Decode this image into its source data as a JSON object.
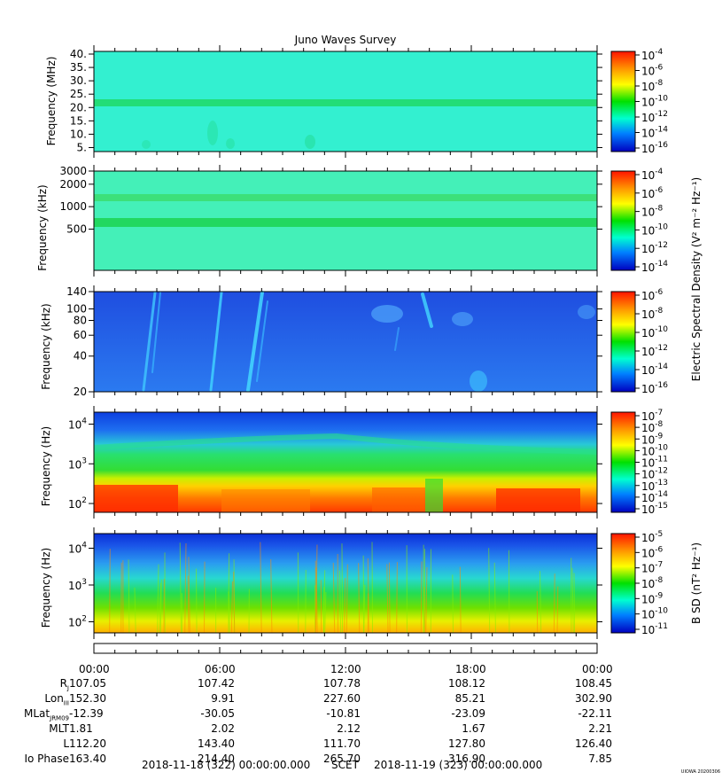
{
  "title": "Juno Waves Survey",
  "credit": "UIOWA 20200306",
  "chart_data": {
    "type": "heatmap",
    "title": "Juno Waves Survey",
    "time_axis": {
      "ticks": [
        "00:00",
        "06:00",
        "12:00",
        "18:00",
        "00:00"
      ],
      "start": "2018-11-18 (322) 00:00:00.000",
      "label": "SCET",
      "end": "2018-11-19 (323) 00:00:00.000"
    },
    "panels": [
      {
        "ylabel": "Frequency (MHz)",
        "yscale": "linear",
        "ylim": [
          3.5,
          41
        ],
        "yticks": [
          {
            "v": 40,
            "label": "40."
          },
          {
            "v": 35,
            "label": "35."
          },
          {
            "v": 30,
            "label": "30."
          },
          {
            "v": 25,
            "label": "25."
          },
          {
            "v": 20,
            "label": "20."
          },
          {
            "v": 15,
            "label": "15."
          },
          {
            "v": 10,
            "label": "10."
          },
          {
            "v": 5,
            "label": "5."
          }
        ],
        "bands": [
          {
            "v": 21.5,
            "width": 1.4,
            "color": "#22dd77"
          }
        ],
        "base_color": "#33f0d0",
        "colorbar": {
          "exp": [
            -4,
            -6,
            -8,
            -10,
            -12,
            -14,
            -16
          ]
        }
      },
      {
        "ylabel": "Frequency (kHz)",
        "yscale": "log",
        "ylim": [
          140,
          3000
        ],
        "yticks": [
          {
            "v": 3000,
            "label": "3000"
          },
          {
            "v": 2000,
            "label": "2000"
          },
          {
            "v": 1000,
            "label": "1000"
          },
          {
            "v": 500,
            "label": "500"
          }
        ],
        "bands": [
          {
            "v": 1400,
            "width": 0.04,
            "color": "#3ce07a"
          },
          {
            "v": 650,
            "width": 0.05,
            "color": "#22d860"
          }
        ],
        "base_color": "#44f0b8",
        "colorbar": {
          "exp": [
            -4,
            -6,
            -8,
            -10,
            -12,
            -14
          ]
        }
      },
      {
        "ylabel": "Frequency (kHz)",
        "yscale": "log",
        "ylim": [
          20,
          140
        ],
        "yticks": [
          {
            "v": 140,
            "label": "140"
          },
          {
            "v": 100,
            "label": "100"
          },
          {
            "v": 80,
            "label": "80"
          },
          {
            "v": 60,
            "label": "60"
          },
          {
            "v": 40,
            "label": "40"
          },
          {
            "v": 20,
            "label": "20"
          }
        ],
        "bands": [],
        "base_color": "#2a6af0",
        "colorbar": {
          "exp": [
            -6,
            -8,
            -10,
            -12,
            -14,
            -16
          ]
        }
      },
      {
        "ylabel": "Frequency (Hz)",
        "yscale": "log",
        "ylim": [
          60,
          20000
        ],
        "yticks": [
          {
            "v": 10000,
            "base": "10",
            "exp": "4"
          },
          {
            "v": 1000,
            "base": "10",
            "exp": "3"
          },
          {
            "v": 100,
            "base": "10",
            "exp": "2"
          }
        ],
        "bands": [],
        "base_color": "#1f6cf0",
        "colorbar": {
          "exp": [
            -7,
            -8,
            -9,
            -10,
            -11,
            -12,
            -13,
            -14,
            -15
          ]
        }
      },
      {
        "ylabel": "Frequency (Hz)",
        "yscale": "log",
        "ylim": [
          50,
          25000
        ],
        "yticks": [
          {
            "v": 10000,
            "base": "10",
            "exp": "4"
          },
          {
            "v": 1000,
            "base": "10",
            "exp": "3"
          },
          {
            "v": 100,
            "base": "10",
            "exp": "2"
          }
        ],
        "bands": [],
        "base_color": "#2a7ff0",
        "colorbar": {
          "exp": [
            -5,
            -6,
            -7,
            -8,
            -9,
            -10,
            -11
          ]
        }
      }
    ],
    "colorbar_labels": {
      "electric": "Electric Spectral Density (V² m⁻² Hz⁻¹)",
      "magnetic": "B SD (nT² Hz⁻¹)"
    }
  },
  "ephemeris": {
    "rows": [
      {
        "label": "R",
        "sub": "J",
        "values": [
          "107.05",
          "107.42",
          "107.78",
          "108.12",
          "108.45"
        ]
      },
      {
        "label": "Lon",
        "sub": "III",
        "values": [
          "152.30",
          "9.91",
          "227.60",
          "85.21",
          "302.90"
        ]
      },
      {
        "label": "MLat",
        "sub": "JRM09",
        "values": [
          "-12.39",
          "-30.05",
          "-10.81",
          "-23.09",
          "-22.11"
        ]
      },
      {
        "label": "MLT",
        "sub": "",
        "values": [
          "1.81",
          "2.02",
          "2.12",
          "1.67",
          "2.21"
        ]
      },
      {
        "label": "L",
        "sub": "",
        "values": [
          "112.20",
          "143.40",
          "111.70",
          "127.80",
          "126.40"
        ]
      },
      {
        "label": "Io Phase",
        "sub": "",
        "values": [
          "163.40",
          "214.40",
          "265.70",
          "316.90",
          "7.85"
        ]
      }
    ]
  }
}
